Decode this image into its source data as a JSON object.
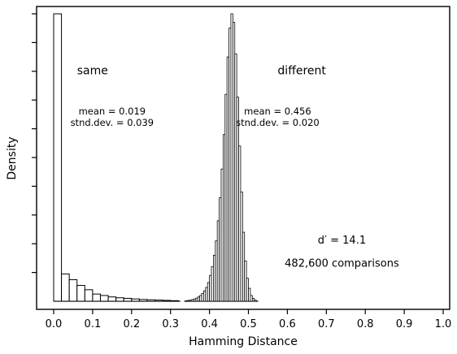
{
  "chart_data": {
    "type": "bar",
    "title": "",
    "xlabel": "Hamming Distance",
    "ylabel": "Density",
    "xlim": [
      0.0,
      1.0
    ],
    "ylim": [
      0,
      1.0
    ],
    "grid": false,
    "x_ticks": [
      "0.0",
      "0.1",
      "0.2",
      "0.3",
      "0.4",
      "0.5",
      "0.6",
      "0.7",
      "0.8",
      "0.9",
      "1.0"
    ],
    "y_ticks": [
      0.1,
      0.2,
      0.3,
      0.4,
      0.5,
      0.6,
      0.7,
      0.8,
      0.9,
      1.0
    ],
    "series": [
      {
        "fill": "#ffffff",
        "bin_width": 0.02,
        "bins_start": [
          0.0,
          0.02,
          0.04,
          0.06,
          0.08,
          0.1,
          0.12,
          0.14,
          0.16,
          0.18,
          0.2,
          0.22,
          0.24,
          0.26,
          0.28,
          0.3
        ],
        "values": [
          1.0,
          0.095,
          0.075,
          0.055,
          0.04,
          0.025,
          0.02,
          0.015,
          0.012,
          0.01,
          0.008,
          0.006,
          0.005,
          0.004,
          0.003,
          0.002
        ]
      },
      {
        "fill": "#ffffff",
        "bin_width": 0.005,
        "bins_start": [
          0.34,
          0.345,
          0.35,
          0.355,
          0.36,
          0.365,
          0.37,
          0.375,
          0.38,
          0.385,
          0.39,
          0.395,
          0.4,
          0.405,
          0.41,
          0.415,
          0.42,
          0.425,
          0.43,
          0.435,
          0.44,
          0.445,
          0.45,
          0.455,
          0.46,
          0.465,
          0.47,
          0.475,
          0.48,
          0.485,
          0.49,
          0.495,
          0.5,
          0.505,
          0.51,
          0.515
        ],
        "values": [
          0.002,
          0.003,
          0.004,
          0.006,
          0.008,
          0.011,
          0.015,
          0.02,
          0.027,
          0.036,
          0.048,
          0.065,
          0.09,
          0.12,
          0.16,
          0.21,
          0.28,
          0.36,
          0.46,
          0.58,
          0.72,
          0.85,
          0.95,
          1.0,
          0.97,
          0.86,
          0.71,
          0.54,
          0.38,
          0.24,
          0.14,
          0.08,
          0.045,
          0.02,
          0.01,
          0.004
        ]
      }
    ],
    "annotations": [
      {
        "text": "same",
        "x": 0.06,
        "y": 0.79
      },
      {
        "text": "mean = 0.019",
        "x": 0.15,
        "y": 0.65
      },
      {
        "text": "stnd.dev. = 0.039",
        "x": 0.15,
        "y": 0.61
      },
      {
        "text": "different",
        "x": 0.575,
        "y": 0.79
      },
      {
        "text": "mean = 0.456",
        "x": 0.575,
        "y": 0.65
      },
      {
        "text": "stnd.dev. = 0.020",
        "x": 0.575,
        "y": 0.61
      },
      {
        "text": "d′ = 14.1",
        "x": 0.74,
        "y": 0.2
      },
      {
        "text": "482,600 comparisons",
        "x": 0.74,
        "y": 0.12
      }
    ]
  }
}
